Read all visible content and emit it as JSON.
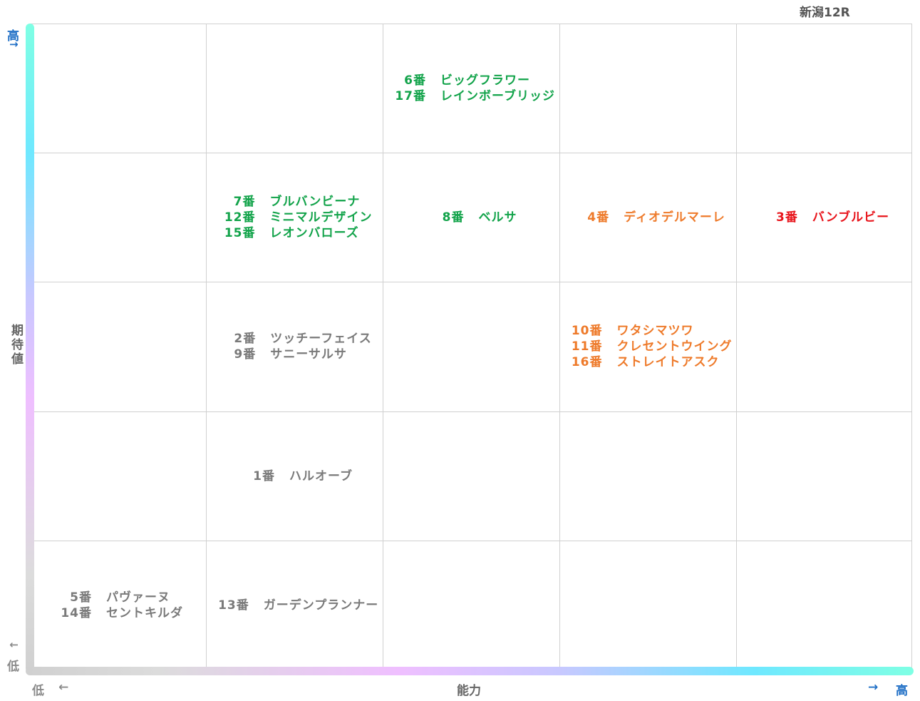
{
  "race_title": "新潟12R",
  "y_axis": {
    "label": "期待値",
    "high": "高",
    "low": "低",
    "arrow_up": "↑",
    "arrow_down": "↓"
  },
  "x_axis": {
    "label": "能力",
    "high": "高",
    "low": "低",
    "arrow_left": "←",
    "arrow_right": "→"
  },
  "colors": {
    "green": "#12a34a",
    "gray": "#7a7a7a",
    "orange": "#ee7a2a",
    "red": "#e8141b",
    "axis_blue": "#1f6fc6"
  },
  "rows": [
    [
      [],
      [],
      [
        {
          "num": "6番",
          "name": "ビッグフラワー",
          "color": "green"
        },
        {
          "num": "17番",
          "name": "レインボーブリッジ",
          "color": "green"
        }
      ],
      [],
      []
    ],
    [
      [],
      [
        {
          "num": "7番",
          "name": "ブルバンビーナ",
          "color": "green"
        },
        {
          "num": "12番",
          "name": "ミニマルデザイン",
          "color": "green"
        },
        {
          "num": "15番",
          "name": "レオンバローズ",
          "color": "green"
        }
      ],
      [
        {
          "num": "8番",
          "name": "ベルサ",
          "color": "green"
        }
      ],
      [
        {
          "num": "4番",
          "name": "ディオデルマーレ",
          "color": "orange"
        }
      ],
      [
        {
          "num": "3番",
          "name": "バンブルビー",
          "color": "red"
        }
      ]
    ],
    [
      [],
      [
        {
          "num": "2番",
          "name": "ツッチーフェイス",
          "color": "gray"
        },
        {
          "num": "9番",
          "name": "サニーサルサ",
          "color": "gray"
        }
      ],
      [],
      [
        {
          "num": "10番",
          "name": "ワタシマツワ",
          "color": "orange"
        },
        {
          "num": "11番",
          "name": "クレセントウイング",
          "color": "orange"
        },
        {
          "num": "16番",
          "name": "ストレイトアスク",
          "color": "orange"
        }
      ],
      []
    ],
    [
      [],
      [
        {
          "num": "1番",
          "name": "ハルオーブ",
          "color": "gray"
        }
      ],
      [],
      [],
      []
    ],
    [
      [
        {
          "num": "5番",
          "name": "パヴァーヌ",
          "color": "gray"
        },
        {
          "num": "14番",
          "name": "セントキルダ",
          "color": "gray"
        }
      ],
      [
        {
          "num": "13番",
          "name": "ガーデンプランナー",
          "color": "gray"
        }
      ],
      [],
      [],
      []
    ]
  ]
}
